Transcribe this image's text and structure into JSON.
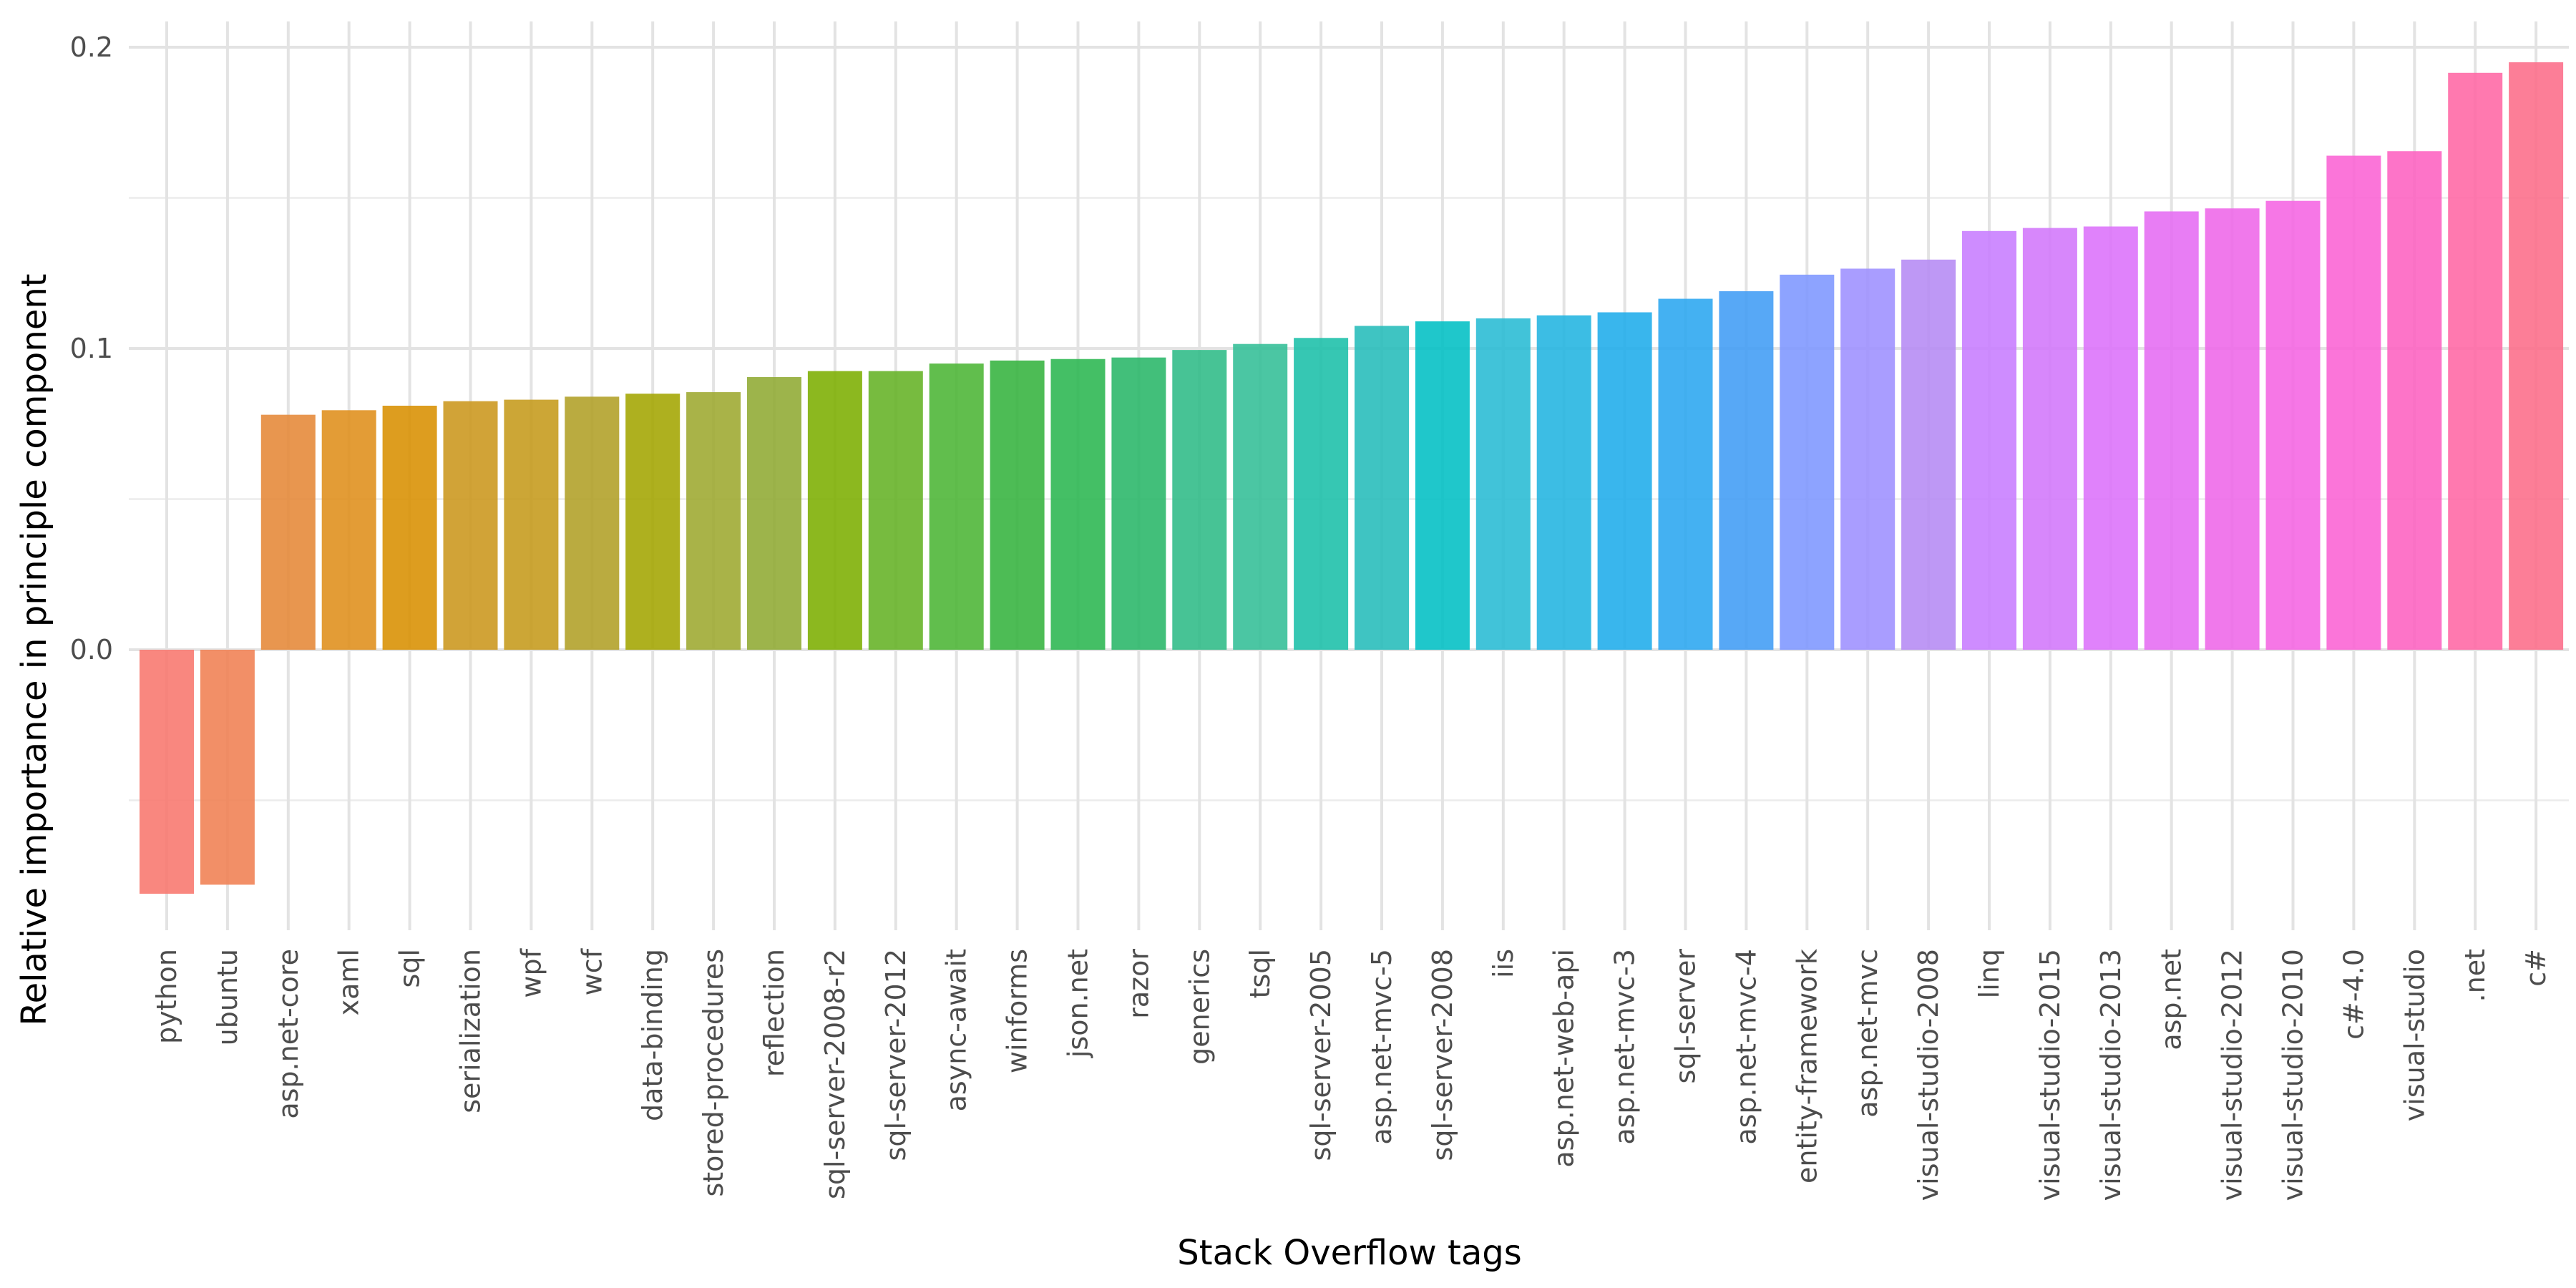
{
  "chart_data": {
    "type": "bar",
    "title": "",
    "xlabel": "Stack Overflow tags",
    "ylabel": "Relative importance in principle component",
    "ylim": [
      -0.093,
      0.208
    ],
    "yticks": [
      0.0,
      0.1,
      0.2
    ],
    "ytick_labels": [
      "0.0",
      "0.1",
      "0.2"
    ],
    "grid": true,
    "legend": "none",
    "categories": [
      "python",
      "ubuntu",
      "asp.net-core",
      "xaml",
      "sql",
      "serialization",
      "wpf",
      "wcf",
      "data-binding",
      "stored-procedures",
      "reflection",
      "sql-server-2008-r2",
      "sql-server-2012",
      "async-await",
      "winforms",
      "json.net",
      "razor",
      "generics",
      "tsql",
      "sql-server-2005",
      "asp.net-mvc-5",
      "sql-server-2008",
      "iis",
      "asp.net-web-api",
      "asp.net-mvc-3",
      "sql-server",
      "asp.net-mvc-4",
      "entity-framework",
      "asp.net-mvc",
      "visual-studio-2008",
      "linq",
      "visual-studio-2015",
      "visual-studio-2013",
      "asp.net",
      "visual-studio-2012",
      "visual-studio-2010",
      "c#-4.0",
      "visual-studio",
      ".net",
      "c#"
    ],
    "values": [
      -0.081,
      -0.078,
      0.078,
      0.0795,
      0.081,
      0.0825,
      0.083,
      0.084,
      0.085,
      0.0855,
      0.0905,
      0.0925,
      0.0925,
      0.095,
      0.096,
      0.0965,
      0.097,
      0.0995,
      0.1015,
      0.1035,
      0.1075,
      0.109,
      0.11,
      0.111,
      0.112,
      0.1165,
      0.119,
      0.1245,
      0.1265,
      0.1295,
      0.139,
      0.14,
      0.1405,
      0.1455,
      0.1465,
      0.149,
      0.164,
      0.1655,
      0.1915,
      0.195
    ],
    "colors": [
      "#F8766D",
      "#F07F52",
      "#E58837",
      "#DF8E1A",
      "#D89000",
      "#CB961B",
      "#C59A1A",
      "#B09F25",
      "#A3A500",
      "#9DA82F",
      "#8FAA32",
      "#7CAE00",
      "#64B224",
      "#4BB534",
      "#34B33E",
      "#2AB650",
      "#28B668",
      "#2DBB86",
      "#32BE96",
      "#1ABFA8",
      "#24BCB9",
      "#00BFC4",
      "#27BBD4",
      "#21B4E0",
      "#1EACEA",
      "#2AA6F0",
      "#409CF5",
      "#7D96FF",
      "#9D8FFF",
      "#B58AF4",
      "#C77CFF",
      "#D276FA",
      "#DC71FA",
      "#E56BF3",
      "#EE67E8",
      "#F564E3",
      "#FA62D4",
      "#FD61C0",
      "#FF67A4",
      "#FC6C89"
    ]
  }
}
